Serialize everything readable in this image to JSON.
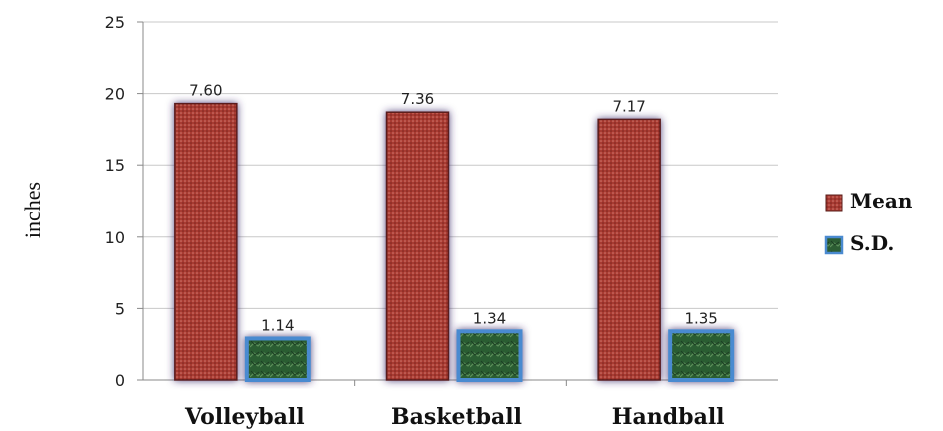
{
  "chart_data": {
    "type": "bar",
    "categories": [
      "Volleyball",
      "Basketball",
      "Handball"
    ],
    "series": [
      {
        "name": "Mean",
        "values": [
          19.3,
          18.7,
          18.2
        ],
        "labels": [
          "7.60",
          "7.36",
          "7.17"
        ],
        "color": "#a33a32"
      },
      {
        "name": "S.D.",
        "values": [
          2.9,
          3.4,
          3.4
        ],
        "labels": [
          "1.14",
          "1.34",
          "1.35"
        ],
        "color": "#2b6b3a"
      }
    ],
    "title": "",
    "xlabel": "",
    "ylabel": "inches",
    "ylim": [
      0,
      25
    ],
    "yticks": [
      "0",
      "5",
      "10",
      "15",
      "20",
      "25"
    ],
    "grid": true,
    "legend_position": "right"
  }
}
